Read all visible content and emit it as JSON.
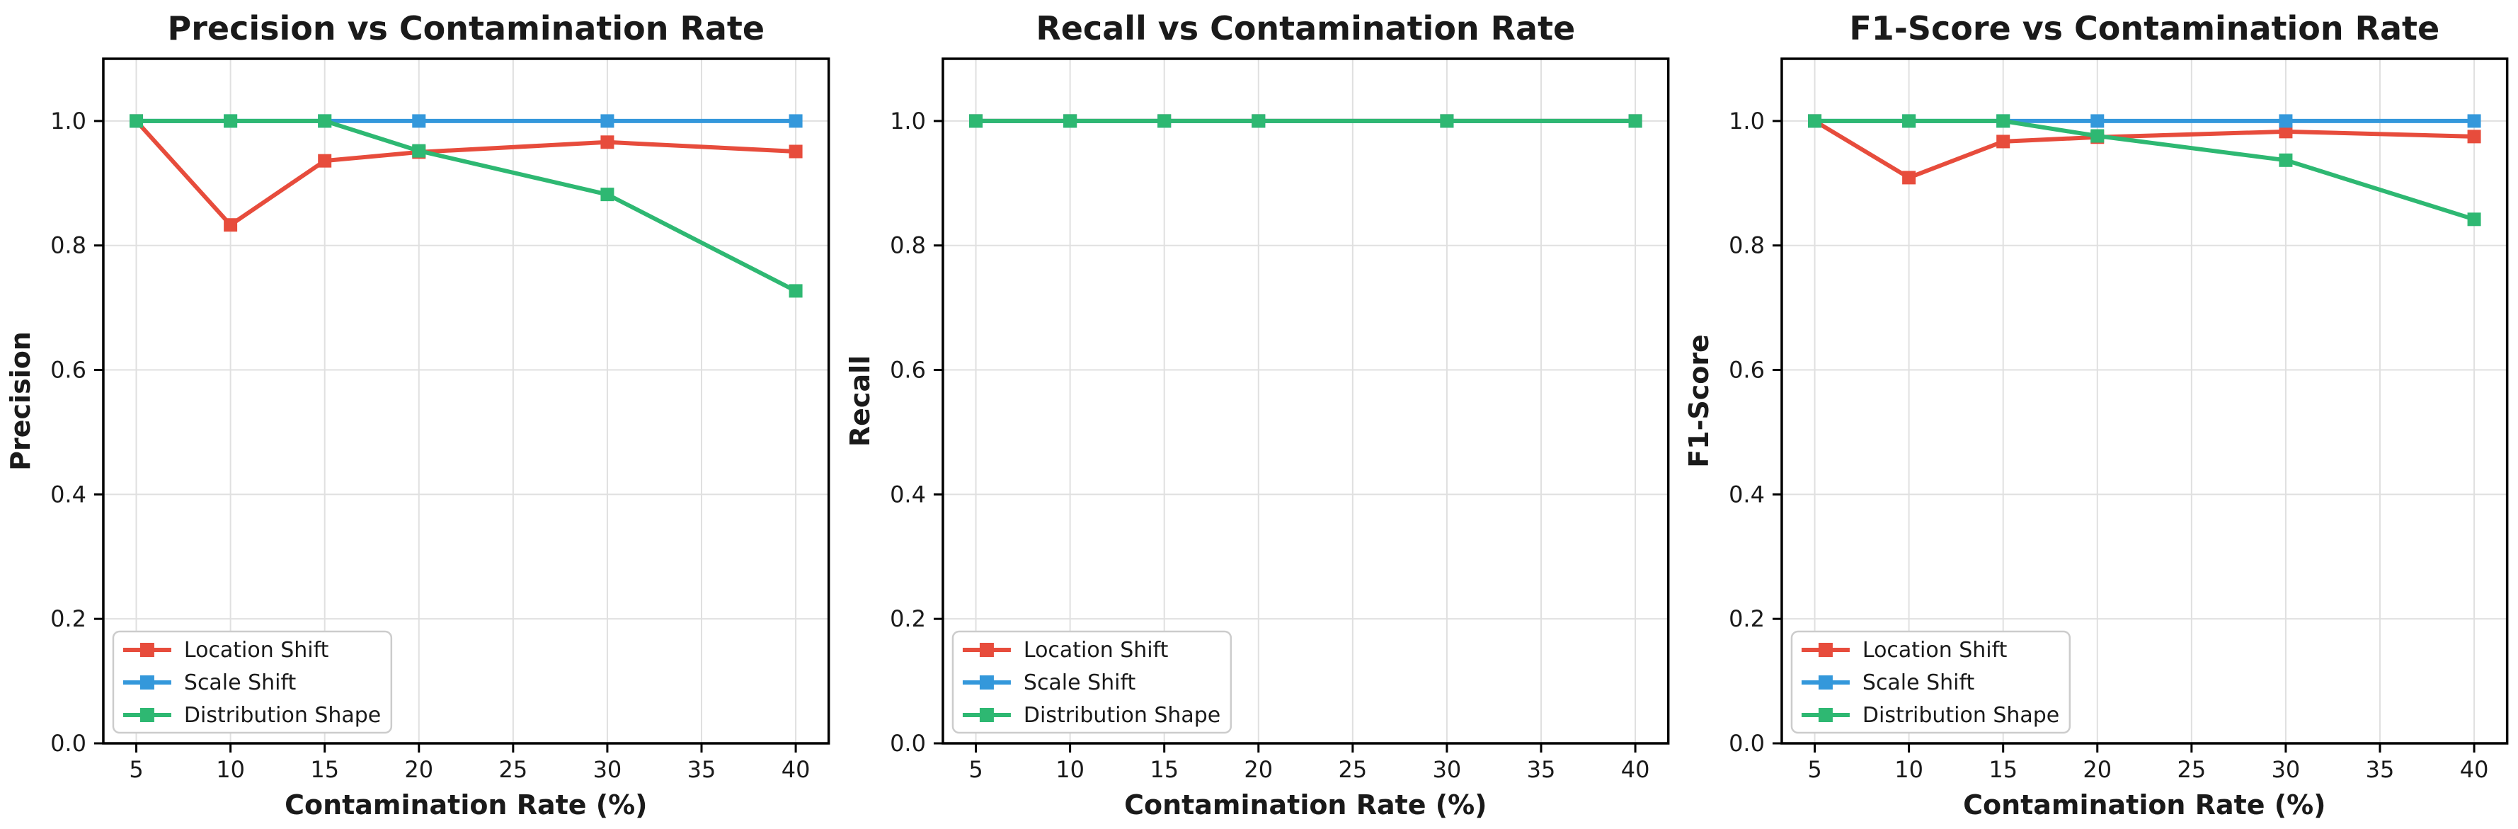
{
  "figure": {
    "background": "#ffffff",
    "text_color": "#1a1a1a",
    "grid_color": "#e0e0e0",
    "spine_color": "#000000",
    "legend_background": "#ffffff",
    "legend_border_color": "#cccccc"
  },
  "legend": {
    "entries": [
      {
        "label": "Location Shift",
        "color": "#e74c3c"
      },
      {
        "label": "Scale Shift",
        "color": "#3498db"
      },
      {
        "label": "Distribution Shape",
        "color": "#2eb872"
      }
    ],
    "position": "lower-left"
  },
  "chart_data": [
    {
      "type": "line",
      "title": "Precision vs Contamination Rate",
      "xlabel": "Contamination Rate (%)",
      "ylabel": "Precision",
      "x": [
        5,
        10,
        15,
        20,
        30,
        40
      ],
      "xticks": [
        5,
        10,
        15,
        20,
        25,
        30,
        35,
        40
      ],
      "xtick_labels": [
        "5",
        "10",
        "15",
        "20",
        "25",
        "30",
        "35",
        "40"
      ],
      "yticks": [
        0.0,
        0.2,
        0.4,
        0.6,
        0.8,
        1.0
      ],
      "ytick_labels": [
        "0.0",
        "0.2",
        "0.4",
        "0.6",
        "0.8",
        "1.0"
      ],
      "xlim": [
        3.25,
        41.75
      ],
      "ylim": [
        0,
        1.1
      ],
      "grid": true,
      "marker": "square",
      "series": [
        {
          "name": "Location Shift",
          "color": "#e74c3c",
          "values": [
            1.0,
            0.833,
            0.936,
            0.95,
            0.966,
            0.951
          ]
        },
        {
          "name": "Scale Shift",
          "color": "#3498db",
          "values": [
            1.0,
            1.0,
            1.0,
            1.0,
            1.0,
            1.0
          ]
        },
        {
          "name": "Distribution Shape",
          "color": "#2eb872",
          "values": [
            1.0,
            1.0,
            1.0,
            0.952,
            0.882,
            0.727
          ]
        }
      ]
    },
    {
      "type": "line",
      "title": "Recall vs Contamination Rate",
      "xlabel": "Contamination Rate (%)",
      "ylabel": "Recall",
      "x": [
        5,
        10,
        15,
        20,
        30,
        40
      ],
      "xticks": [
        5,
        10,
        15,
        20,
        25,
        30,
        35,
        40
      ],
      "xtick_labels": [
        "5",
        "10",
        "15",
        "20",
        "25",
        "30",
        "35",
        "40"
      ],
      "yticks": [
        0.0,
        0.2,
        0.4,
        0.6,
        0.8,
        1.0
      ],
      "ytick_labels": [
        "0.0",
        "0.2",
        "0.4",
        "0.6",
        "0.8",
        "1.0"
      ],
      "xlim": [
        3.25,
        41.75
      ],
      "ylim": [
        0,
        1.1
      ],
      "grid": true,
      "marker": "square",
      "series": [
        {
          "name": "Location Shift",
          "color": "#e74c3c",
          "values": [
            1.0,
            1.0,
            1.0,
            1.0,
            1.0,
            1.0
          ]
        },
        {
          "name": "Scale Shift",
          "color": "#3498db",
          "values": [
            1.0,
            1.0,
            1.0,
            1.0,
            1.0,
            1.0
          ]
        },
        {
          "name": "Distribution Shape",
          "color": "#2eb872",
          "values": [
            1.0,
            1.0,
            1.0,
            1.0,
            1.0,
            1.0
          ]
        }
      ]
    },
    {
      "type": "line",
      "title": "F1-Score vs Contamination Rate",
      "xlabel": "Contamination Rate (%)",
      "ylabel": "F1-Score",
      "x": [
        5,
        10,
        15,
        20,
        30,
        40
      ],
      "xticks": [
        5,
        10,
        15,
        20,
        25,
        30,
        35,
        40
      ],
      "xtick_labels": [
        "5",
        "10",
        "15",
        "20",
        "25",
        "30",
        "35",
        "40"
      ],
      "yticks": [
        0.0,
        0.2,
        0.4,
        0.6,
        0.8,
        1.0
      ],
      "ytick_labels": [
        "0.0",
        "0.2",
        "0.4",
        "0.6",
        "0.8",
        "1.0"
      ],
      "xlim": [
        3.25,
        41.75
      ],
      "ylim": [
        0,
        1.1
      ],
      "grid": true,
      "marker": "square",
      "series": [
        {
          "name": "Location Shift",
          "color": "#e74c3c",
          "values": [
            1.0,
            0.909,
            0.967,
            0.974,
            0.983,
            0.975
          ]
        },
        {
          "name": "Scale Shift",
          "color": "#3498db",
          "values": [
            1.0,
            1.0,
            1.0,
            1.0,
            1.0,
            1.0
          ]
        },
        {
          "name": "Distribution Shape",
          "color": "#2eb872",
          "values": [
            1.0,
            1.0,
            1.0,
            0.976,
            0.937,
            0.842
          ]
        }
      ]
    }
  ]
}
